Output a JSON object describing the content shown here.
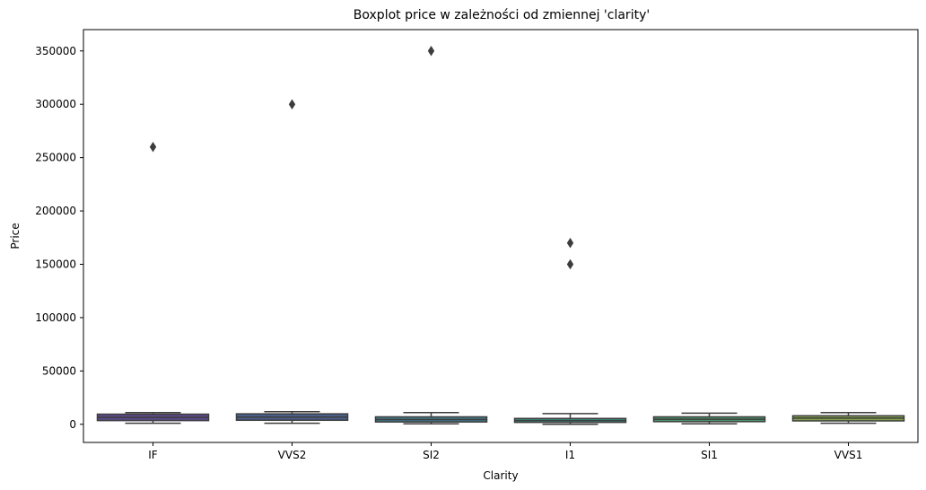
{
  "chart_data": {
    "type": "boxplot",
    "title": "Boxplot price w zależności od zmiennej 'clarity'",
    "xlabel": "Clarity",
    "ylabel": "Price",
    "ylim": [
      -17000,
      370000
    ],
    "yticks": [
      0,
      50000,
      100000,
      150000,
      200000,
      250000,
      300000,
      350000
    ],
    "grid": false,
    "categories": [
      "IF",
      "VVS2",
      "SI2",
      "I1",
      "SI1",
      "VVS1"
    ],
    "boxes": [
      {
        "category": "IF",
        "whisker_low": 1000,
        "q1": 3500,
        "median": 6500,
        "q3": 9500,
        "whisker_high": 11000,
        "outliers": [
          260000
        ],
        "color": "#5a4a88"
      },
      {
        "category": "VVS2",
        "whisker_low": 1000,
        "q1": 3800,
        "median": 6800,
        "q3": 9800,
        "whisker_high": 11800,
        "outliers": [
          300000
        ],
        "color": "#4a5f8a"
      },
      {
        "category": "SI2",
        "whisker_low": 500,
        "q1": 2200,
        "median": 4500,
        "q3": 7000,
        "whisker_high": 11000,
        "outliers": [
          350000
        ],
        "color": "#3f7886"
      },
      {
        "category": "I1",
        "whisker_low": 0,
        "q1": 1800,
        "median": 3500,
        "q3": 5500,
        "whisker_high": 10000,
        "outliers": [
          150000,
          170000
        ],
        "color": "#3a8a7d"
      },
      {
        "category": "SI1",
        "whisker_low": 500,
        "q1": 2500,
        "median": 4800,
        "q3": 7000,
        "whisker_high": 10500,
        "outliers": [],
        "color": "#48956a"
      },
      {
        "category": "VVS1",
        "whisker_low": 1000,
        "q1": 3200,
        "median": 5800,
        "q3": 8000,
        "whisker_high": 11000,
        "outliers": [],
        "color": "#82a14d"
      }
    ]
  }
}
